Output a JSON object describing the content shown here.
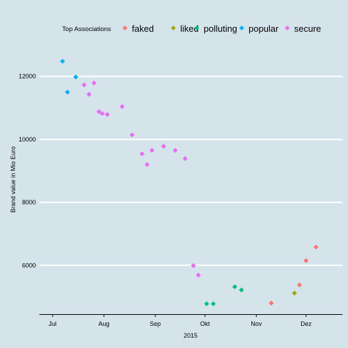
{
  "chart_data": {
    "type": "scatter",
    "xlabel": "2015",
    "ylabel": "Brand value in Mio Euro",
    "ylim": [
      4450,
      13000
    ],
    "y_ticks": [
      6000,
      8000,
      10000,
      12000
    ],
    "y_tick_labels": [
      "6000",
      "8000",
      "10000",
      "12000"
    ],
    "x_range_days": [
      -8,
      175
    ],
    "x_ticks": [
      {
        "label": "Jul",
        "day": 0
      },
      {
        "label": "Aug",
        "day": 31
      },
      {
        "label": "Sep",
        "day": 62
      },
      {
        "label": "Okt",
        "day": 92
      },
      {
        "label": "Nov",
        "day": 123
      },
      {
        "label": "Dez",
        "day": 153
      }
    ],
    "legend": {
      "title": "Top Associations",
      "position": "top",
      "entries": [
        {
          "name": "faked",
          "color": "#f8766d"
        },
        {
          "name": "liked",
          "color": "#a3a500"
        },
        {
          "name": "polluting",
          "color": "#00bf7d"
        },
        {
          "name": "popular",
          "color": "#00b0f6"
        },
        {
          "name": "secure",
          "color": "#e76bf3"
        }
      ]
    },
    "series": [
      {
        "name": "faked",
        "color": "#f8766d",
        "points": [
          {
            "day": 132,
            "value": 4800
          },
          {
            "day": 149,
            "value": 5380
          },
          {
            "day": 153,
            "value": 6150
          },
          {
            "day": 159,
            "value": 6580
          }
        ]
      },
      {
        "name": "liked",
        "color": "#a3a500",
        "points": [
          {
            "day": 146,
            "value": 5120
          }
        ]
      },
      {
        "name": "polluting",
        "color": "#00bf7d",
        "points": [
          {
            "day": 93,
            "value": 4780
          },
          {
            "day": 97,
            "value": 4780
          },
          {
            "day": 110,
            "value": 5320
          },
          {
            "day": 114,
            "value": 5220
          }
        ]
      },
      {
        "name": "popular",
        "color": "#00b0f6",
        "points": [
          {
            "day": 6,
            "value": 12480
          },
          {
            "day": 9,
            "value": 11500
          },
          {
            "day": 14,
            "value": 11980
          }
        ]
      },
      {
        "name": "secure",
        "color": "#e76bf3",
        "points": [
          {
            "day": 19,
            "value": 11730
          },
          {
            "day": 22,
            "value": 11430
          },
          {
            "day": 25,
            "value": 11790
          },
          {
            "day": 28,
            "value": 10880
          },
          {
            "day": 30,
            "value": 10820
          },
          {
            "day": 33,
            "value": 10790
          },
          {
            "day": 42,
            "value": 11040
          },
          {
            "day": 48,
            "value": 10140
          },
          {
            "day": 54,
            "value": 9540
          },
          {
            "day": 57,
            "value": 9200
          },
          {
            "day": 60,
            "value": 9650
          },
          {
            "day": 67,
            "value": 9780
          },
          {
            "day": 74,
            "value": 9650
          },
          {
            "day": 80,
            "value": 9390
          },
          {
            "day": 85,
            "value": 5990
          },
          {
            "day": 88,
            "value": 5690
          }
        ]
      }
    ]
  }
}
